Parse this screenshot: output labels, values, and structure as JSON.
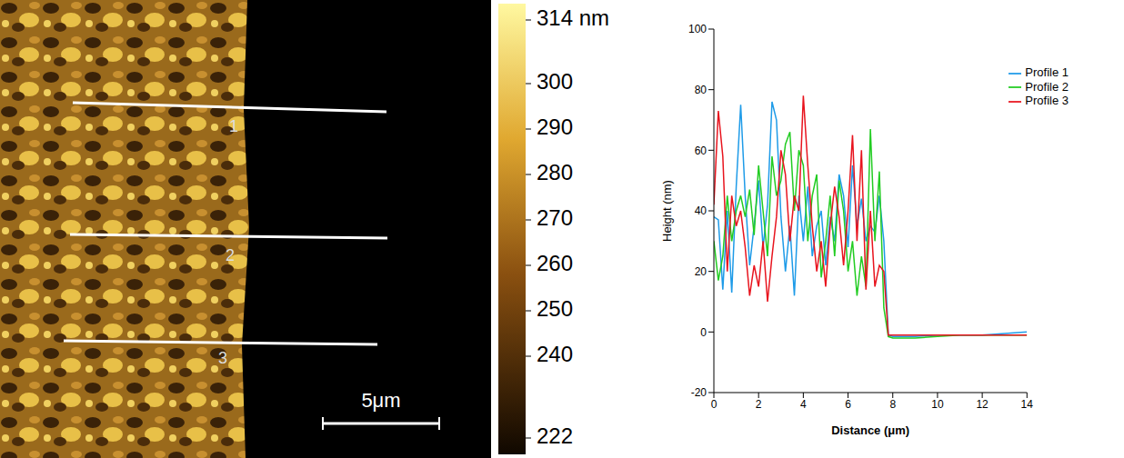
{
  "chart_data": [
    {
      "type": "image",
      "colorbar": {
        "range": [
          222,
          314
        ],
        "ticks": [
          {
            "value": 314,
            "label": "314 nm"
          },
          300,
          290,
          280,
          270,
          260,
          250,
          240,
          222
        ]
      },
      "scale_bar": "5μm",
      "profile_labels": [
        "1",
        "2",
        "3"
      ]
    },
    {
      "type": "line",
      "x_label": "Distance (μm)",
      "y_label": "Height (nm)",
      "x": [
        0,
        0.2,
        0.4,
        0.6,
        0.8,
        1.0,
        1.2,
        1.4,
        1.6,
        1.8,
        2.0,
        2.2,
        2.4,
        2.6,
        2.8,
        3.0,
        3.2,
        3.4,
        3.6,
        3.8,
        4.0,
        4.2,
        4.4,
        4.6,
        4.8,
        5.0,
        5.2,
        5.4,
        5.6,
        5.8,
        6.0,
        6.2,
        6.4,
        6.6,
        6.8,
        7.0,
        7.2,
        7.4,
        7.6,
        7.8,
        8,
        9,
        10,
        11,
        12,
        13,
        14
      ],
      "series": [
        {
          "name": "Profile 1",
          "color": "#1e9be8",
          "values": [
            38,
            37,
            14,
            40,
            13,
            48,
            75,
            45,
            22,
            35,
            50,
            28,
            42,
            76,
            70,
            38,
            20,
            35,
            12,
            45,
            30,
            48,
            25,
            35,
            40,
            22,
            38,
            30,
            52,
            45,
            28,
            55,
            35,
            44,
            30,
            35,
            33,
            45,
            30,
            -1,
            -1.5,
            -1.5,
            -1,
            -1,
            -1,
            -0.5,
            0
          ]
        },
        {
          "name": "Profile 2",
          "color": "#22cc22",
          "values": [
            30,
            17,
            25,
            45,
            30,
            40,
            45,
            38,
            47,
            32,
            55,
            40,
            25,
            58,
            45,
            50,
            62,
            66,
            40,
            60,
            55,
            30,
            45,
            52,
            18,
            30,
            45,
            25,
            50,
            40,
            20,
            30,
            12,
            25,
            15,
            67,
            30,
            53,
            8,
            -1.5,
            -2,
            -2,
            -1.5,
            -1,
            -1,
            -1,
            -1
          ]
        },
        {
          "name": "Profile 3",
          "color": "#e8141e",
          "values": [
            42,
            73,
            58,
            20,
            45,
            35,
            40,
            28,
            12,
            22,
            15,
            30,
            10,
            25,
            38,
            60,
            52,
            30,
            45,
            40,
            78,
            55,
            35,
            20,
            30,
            15,
            35,
            48,
            38,
            22,
            40,
            65,
            30,
            60,
            14,
            40,
            15,
            22,
            20,
            -1,
            -1,
            -1,
            -1,
            -1,
            -1,
            -1,
            -1
          ]
        }
      ],
      "xlim": [
        0,
        14
      ],
      "xticks": [
        0,
        2,
        4,
        6,
        8,
        10,
        12,
        14
      ],
      "ylim": [
        -20,
        100
      ],
      "yticks": [
        -20,
        0,
        20,
        40,
        60,
        80,
        100
      ],
      "legend": "top-right",
      "grid": false
    }
  ]
}
